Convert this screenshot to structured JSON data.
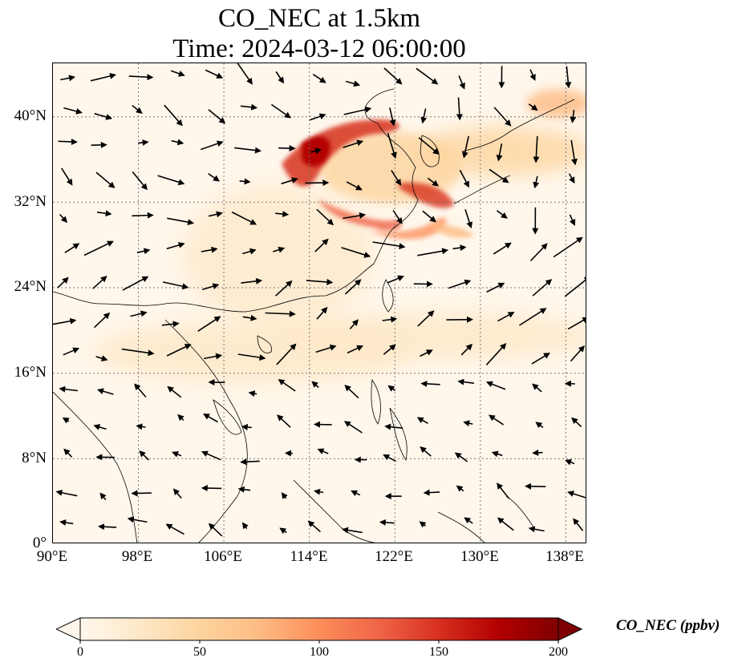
{
  "title": {
    "line1": "CO_NEC at 1.5km",
    "line2": "Time: 2024-03-12 06:00:00"
  },
  "map": {
    "lon_range": [
      90,
      140
    ],
    "lat_range": [
      0,
      45
    ],
    "gridlines": "dotted",
    "lat_ticks": [
      "0°",
      "8°N",
      "16°N",
      "24°N",
      "32°N",
      "40°N"
    ],
    "lon_ticks": [
      "90°E",
      "98°E",
      "106°E",
      "114°E",
      "122°E",
      "130°E",
      "138°E"
    ],
    "layers": [
      "CO concentration field",
      "wind vectors",
      "coastlines"
    ]
  },
  "colorbar": {
    "label": "CO_NEC (ppbv)",
    "colormap": "OrRd",
    "range": [
      0,
      200
    ],
    "extend": "both",
    "ticks": [
      "0",
      "50",
      "100",
      "150",
      "200"
    ],
    "colors": [
      "#fff7ec",
      "#fee8c8",
      "#fdd49e",
      "#fdbb84",
      "#fc8d59",
      "#ef6548",
      "#d7301f",
      "#b30000",
      "#7f0000"
    ]
  }
}
